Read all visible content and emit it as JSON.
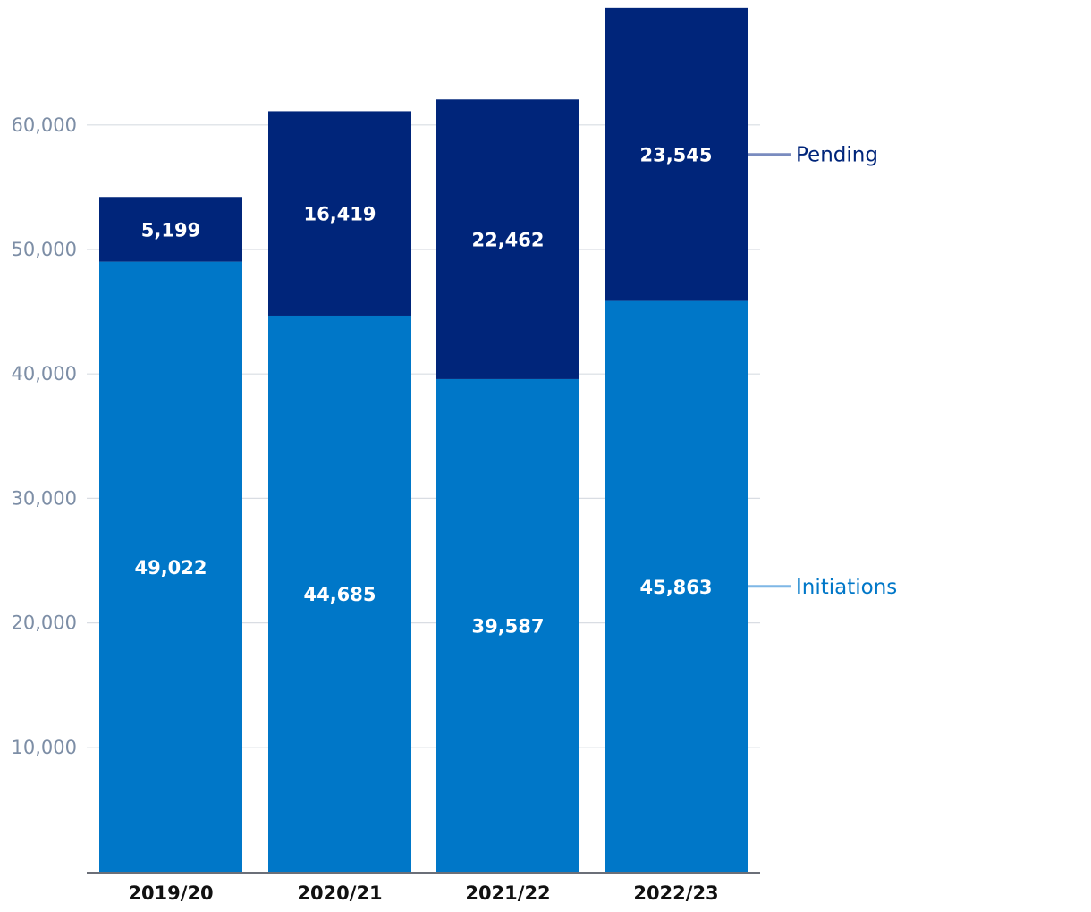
{
  "chart_data": {
    "type": "bar",
    "stacked": true,
    "title": "",
    "xlabel": "",
    "ylabel": "",
    "ylim": [
      0,
      70000
    ],
    "yticks": [
      10000,
      20000,
      30000,
      40000,
      50000,
      60000
    ],
    "ytick_labels": [
      "10,000",
      "20,000",
      "30,000",
      "40,000",
      "50,000",
      "60,000"
    ],
    "grid": true,
    "legend_position": "right",
    "categories": [
      "2019/20",
      "2020/21",
      "2021/22",
      "2022/23"
    ],
    "series": [
      {
        "name": "Initiations",
        "color": "#0077c8",
        "legend_line_color": "#7fb7e6",
        "values": [
          49022,
          44685,
          39587,
          45863
        ],
        "labels": [
          "49,022",
          "44,685",
          "39,587",
          "45,863"
        ]
      },
      {
        "name": "Pending",
        "color": "#00257a",
        "legend_line_color": "#7a8cbf",
        "values": [
          5199,
          16419,
          22462,
          23545
        ],
        "labels": [
          "5,199",
          "16,419",
          "22,462",
          "23,545"
        ]
      }
    ]
  }
}
